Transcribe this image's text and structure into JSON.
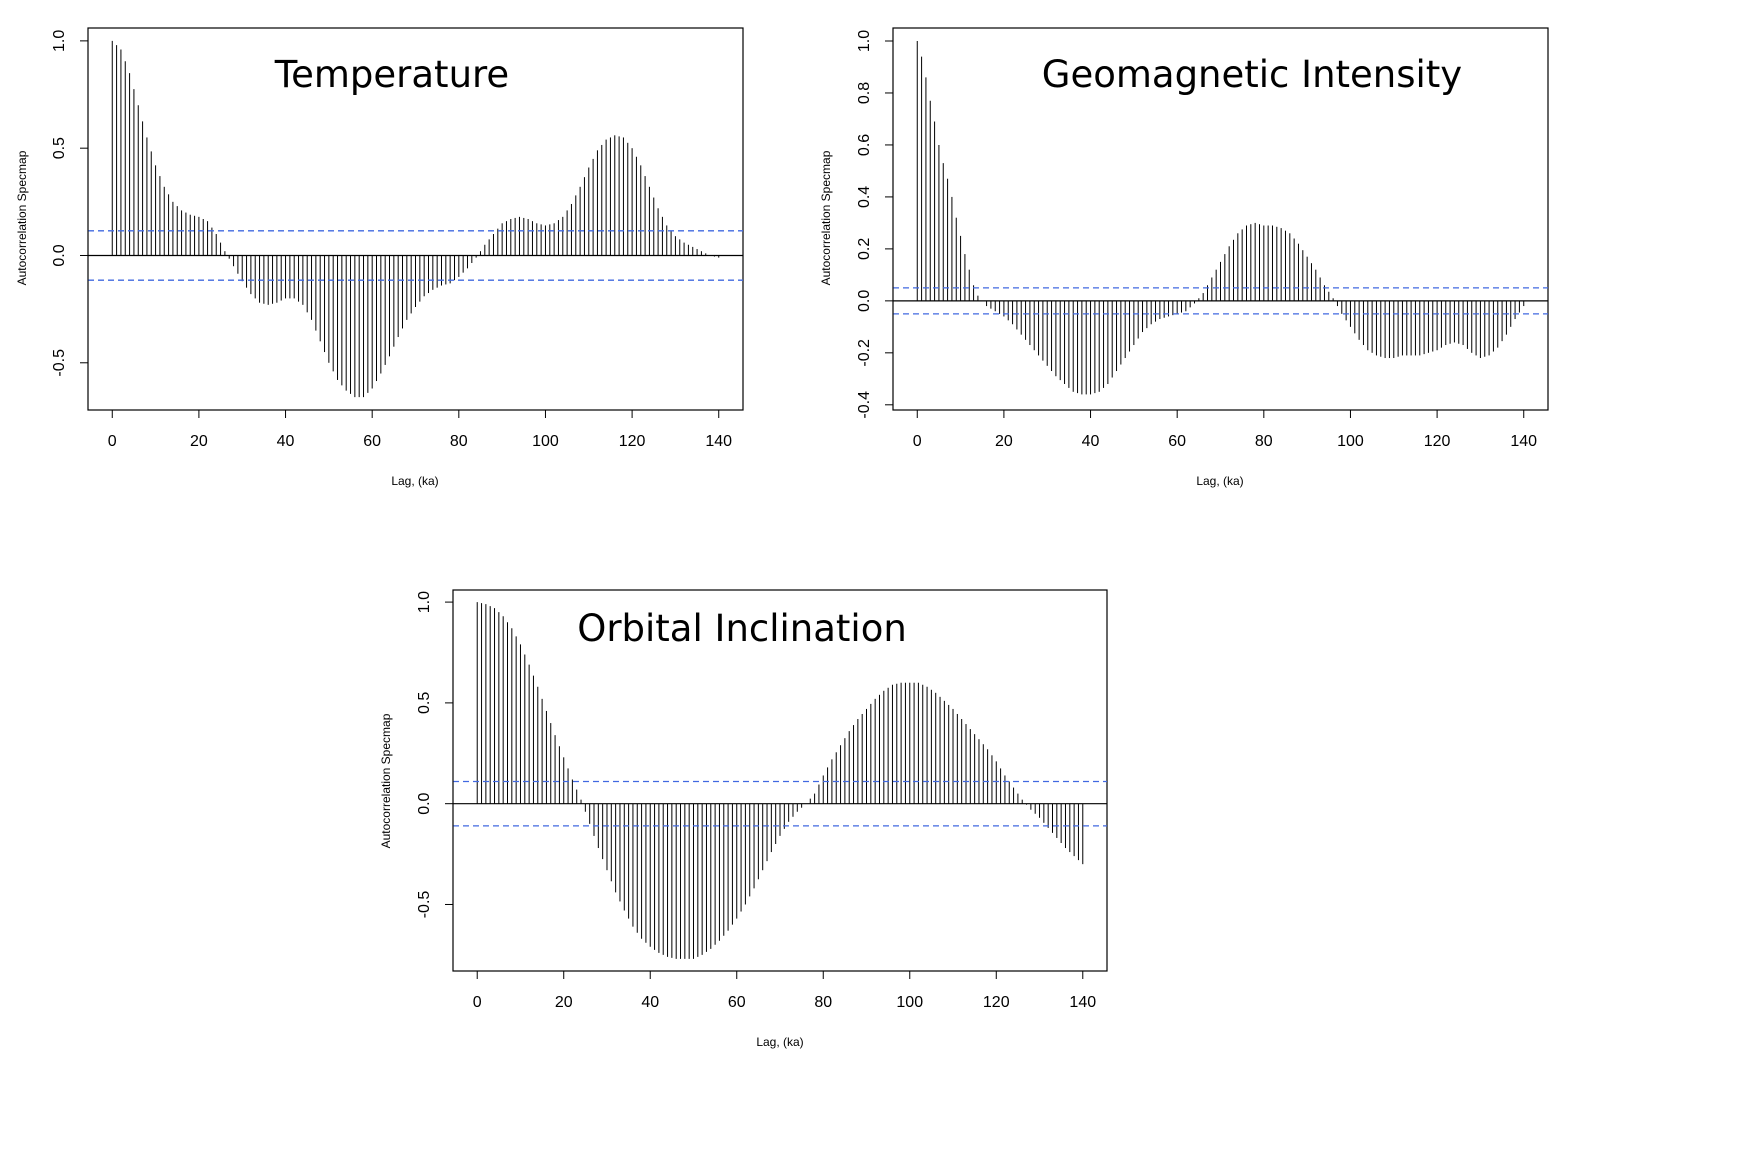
{
  "chart_data": [
    {
      "type": "bar",
      "title": "Temperature",
      "xlabel": "Lag, (ka)",
      "ylabel": "Autocorrelation Specmap",
      "xlim": [
        -5.6,
        145.6
      ],
      "ylim": [
        -0.72,
        1.06
      ],
      "xticks": [
        0,
        20,
        40,
        60,
        80,
        100,
        120,
        140
      ],
      "yticks": [
        -0.5,
        0.0,
        0.5,
        1.0
      ],
      "ytick_labels": [
        "-0.5",
        "0.0",
        "0.5",
        "1.0"
      ],
      "conf_band": 0.115,
      "grid": false,
      "series_color": "#000000",
      "band_color": "#4169e1",
      "x_step": 1,
      "curve": [
        [
          0,
          1.0
        ],
        [
          2,
          0.96
        ],
        [
          4,
          0.85
        ],
        [
          6,
          0.7
        ],
        [
          8,
          0.55
        ],
        [
          10,
          0.42
        ],
        [
          12,
          0.32
        ],
        [
          14,
          0.25
        ],
        [
          16,
          0.21
        ],
        [
          18,
          0.19
        ],
        [
          20,
          0.18
        ],
        [
          22,
          0.16
        ],
        [
          24,
          0.1
        ],
        [
          26,
          0.02
        ],
        [
          28,
          -0.05
        ],
        [
          30,
          -0.12
        ],
        [
          32,
          -0.18
        ],
        [
          34,
          -0.22
        ],
        [
          36,
          -0.23
        ],
        [
          38,
          -0.22
        ],
        [
          40,
          -0.2
        ],
        [
          42,
          -0.2
        ],
        [
          44,
          -0.23
        ],
        [
          46,
          -0.3
        ],
        [
          48,
          -0.4
        ],
        [
          50,
          -0.5
        ],
        [
          52,
          -0.58
        ],
        [
          54,
          -0.63
        ],
        [
          56,
          -0.66
        ],
        [
          58,
          -0.66
        ],
        [
          60,
          -0.62
        ],
        [
          62,
          -0.55
        ],
        [
          64,
          -0.47
        ],
        [
          66,
          -0.38
        ],
        [
          68,
          -0.3
        ],
        [
          70,
          -0.24
        ],
        [
          72,
          -0.19
        ],
        [
          74,
          -0.16
        ],
        [
          76,
          -0.14
        ],
        [
          78,
          -0.13
        ],
        [
          80,
          -0.1
        ],
        [
          82,
          -0.06
        ],
        [
          84,
          -0.01
        ],
        [
          86,
          0.05
        ],
        [
          88,
          0.1
        ],
        [
          90,
          0.15
        ],
        [
          92,
          0.17
        ],
        [
          94,
          0.18
        ],
        [
          96,
          0.17
        ],
        [
          98,
          0.15
        ],
        [
          100,
          0.14
        ],
        [
          102,
          0.15
        ],
        [
          104,
          0.18
        ],
        [
          106,
          0.24
        ],
        [
          108,
          0.32
        ],
        [
          110,
          0.41
        ],
        [
          112,
          0.49
        ],
        [
          114,
          0.54
        ],
        [
          116,
          0.56
        ],
        [
          118,
          0.55
        ],
        [
          120,
          0.5
        ],
        [
          122,
          0.42
        ],
        [
          124,
          0.32
        ],
        [
          126,
          0.22
        ],
        [
          128,
          0.14
        ],
        [
          130,
          0.09
        ],
        [
          132,
          0.06
        ],
        [
          134,
          0.04
        ],
        [
          136,
          0.02
        ],
        [
          138,
          0.0
        ],
        [
          140,
          -0.01
        ]
      ]
    },
    {
      "type": "bar",
      "title": "Geomagnetic Intensity",
      "xlabel": "Lag, (ka)",
      "ylabel": "Autocorrelation Specmap",
      "xlim": [
        -5.6,
        145.6
      ],
      "ylim": [
        -0.42,
        1.05
      ],
      "xticks": [
        0,
        20,
        40,
        60,
        80,
        100,
        120,
        140
      ],
      "yticks": [
        -0.4,
        -0.2,
        0.0,
        0.2,
        0.4,
        0.6,
        0.8,
        1.0
      ],
      "ytick_labels": [
        "-0.4",
        "-0.2",
        "0.0",
        "0.2",
        "0.4",
        "0.6",
        "0.8",
        "1.0"
      ],
      "conf_band": 0.05,
      "grid": false,
      "series_color": "#000000",
      "band_color": "#4169e1",
      "x_step": 1,
      "curve": [
        [
          0,
          1.0
        ],
        [
          1,
          0.94
        ],
        [
          2,
          0.86
        ],
        [
          3,
          0.77
        ],
        [
          4,
          0.69
        ],
        [
          5,
          0.6
        ],
        [
          6,
          0.53
        ],
        [
          7,
          0.47
        ],
        [
          8,
          0.4
        ],
        [
          9,
          0.32
        ],
        [
          10,
          0.25
        ],
        [
          11,
          0.18
        ],
        [
          12,
          0.12
        ],
        [
          13,
          0.06
        ],
        [
          14,
          0.02
        ],
        [
          16,
          -0.02
        ],
        [
          18,
          -0.04
        ],
        [
          20,
          -0.06
        ],
        [
          22,
          -0.09
        ],
        [
          24,
          -0.13
        ],
        [
          26,
          -0.17
        ],
        [
          28,
          -0.21
        ],
        [
          30,
          -0.25
        ],
        [
          32,
          -0.29
        ],
        [
          34,
          -0.32
        ],
        [
          36,
          -0.35
        ],
        [
          38,
          -0.36
        ],
        [
          40,
          -0.36
        ],
        [
          42,
          -0.35
        ],
        [
          44,
          -0.32
        ],
        [
          46,
          -0.27
        ],
        [
          48,
          -0.22
        ],
        [
          50,
          -0.17
        ],
        [
          52,
          -0.12
        ],
        [
          54,
          -0.09
        ],
        [
          56,
          -0.07
        ],
        [
          58,
          -0.06
        ],
        [
          60,
          -0.05
        ],
        [
          62,
          -0.04
        ],
        [
          64,
          -0.01
        ],
        [
          66,
          0.03
        ],
        [
          68,
          0.09
        ],
        [
          70,
          0.15
        ],
        [
          72,
          0.21
        ],
        [
          74,
          0.26
        ],
        [
          76,
          0.29
        ],
        [
          78,
          0.3
        ],
        [
          80,
          0.29
        ],
        [
          82,
          0.29
        ],
        [
          84,
          0.28
        ],
        [
          86,
          0.26
        ],
        [
          88,
          0.22
        ],
        [
          90,
          0.17
        ],
        [
          92,
          0.12
        ],
        [
          94,
          0.06
        ],
        [
          96,
          0.01
        ],
        [
          98,
          -0.05
        ],
        [
          100,
          -0.1
        ],
        [
          102,
          -0.15
        ],
        [
          104,
          -0.19
        ],
        [
          106,
          -0.21
        ],
        [
          108,
          -0.22
        ],
        [
          110,
          -0.22
        ],
        [
          112,
          -0.21
        ],
        [
          114,
          -0.21
        ],
        [
          116,
          -0.21
        ],
        [
          118,
          -0.2
        ],
        [
          120,
          -0.19
        ],
        [
          122,
          -0.17
        ],
        [
          124,
          -0.16
        ],
        [
          126,
          -0.17
        ],
        [
          128,
          -0.2
        ],
        [
          130,
          -0.22
        ],
        [
          132,
          -0.21
        ],
        [
          134,
          -0.18
        ],
        [
          136,
          -0.13
        ],
        [
          138,
          -0.07
        ],
        [
          140,
          -0.02
        ]
      ]
    },
    {
      "type": "bar",
      "title": "Orbital Inclination",
      "xlabel": "Lag, (ka)",
      "ylabel": "Autocorrelation Specmap",
      "xlim": [
        -5.6,
        145.6
      ],
      "ylim": [
        -0.83,
        1.06
      ],
      "xticks": [
        0,
        20,
        40,
        60,
        80,
        100,
        120,
        140
      ],
      "yticks": [
        -0.5,
        0.0,
        0.5,
        1.0
      ],
      "ytick_labels": [
        "-0.5",
        "0.0",
        "0.5",
        "1.0"
      ],
      "conf_band": 0.11,
      "grid": false,
      "series_color": "#000000",
      "band_color": "#4169e1",
      "x_step": 1,
      "curve": [
        [
          0,
          1.0
        ],
        [
          2,
          0.99
        ],
        [
          4,
          0.97
        ],
        [
          6,
          0.93
        ],
        [
          8,
          0.87
        ],
        [
          10,
          0.79
        ],
        [
          12,
          0.69
        ],
        [
          14,
          0.58
        ],
        [
          16,
          0.46
        ],
        [
          18,
          0.34
        ],
        [
          20,
          0.23
        ],
        [
          22,
          0.12
        ],
        [
          24,
          0.02
        ],
        [
          26,
          -0.1
        ],
        [
          28,
          -0.22
        ],
        [
          30,
          -0.33
        ],
        [
          32,
          -0.44
        ],
        [
          34,
          -0.53
        ],
        [
          36,
          -0.61
        ],
        [
          38,
          -0.67
        ],
        [
          40,
          -0.71
        ],
        [
          42,
          -0.74
        ],
        [
          44,
          -0.76
        ],
        [
          46,
          -0.77
        ],
        [
          48,
          -0.77
        ],
        [
          50,
          -0.77
        ],
        [
          52,
          -0.75
        ],
        [
          54,
          -0.72
        ],
        [
          56,
          -0.68
        ],
        [
          58,
          -0.63
        ],
        [
          60,
          -0.57
        ],
        [
          62,
          -0.5
        ],
        [
          64,
          -0.42
        ],
        [
          66,
          -0.33
        ],
        [
          68,
          -0.24
        ],
        [
          70,
          -0.16
        ],
        [
          72,
          -0.09
        ],
        [
          74,
          -0.04
        ],
        [
          76,
          0.0
        ],
        [
          78,
          0.05
        ],
        [
          80,
          0.14
        ],
        [
          82,
          0.22
        ],
        [
          84,
          0.29
        ],
        [
          86,
          0.36
        ],
        [
          88,
          0.42
        ],
        [
          90,
          0.47
        ],
        [
          92,
          0.52
        ],
        [
          94,
          0.56
        ],
        [
          96,
          0.59
        ],
        [
          98,
          0.6
        ],
        [
          100,
          0.6
        ],
        [
          102,
          0.6
        ],
        [
          104,
          0.58
        ],
        [
          106,
          0.55
        ],
        [
          108,
          0.51
        ],
        [
          110,
          0.47
        ],
        [
          112,
          0.42
        ],
        [
          114,
          0.37
        ],
        [
          116,
          0.32
        ],
        [
          118,
          0.27
        ],
        [
          120,
          0.21
        ],
        [
          122,
          0.14
        ],
        [
          124,
          0.08
        ],
        [
          126,
          0.02
        ],
        [
          128,
          -0.03
        ],
        [
          130,
          -0.07
        ],
        [
          132,
          -0.12
        ],
        [
          134,
          -0.17
        ],
        [
          136,
          -0.22
        ],
        [
          138,
          -0.26
        ],
        [
          140,
          -0.3
        ]
      ]
    }
  ]
}
